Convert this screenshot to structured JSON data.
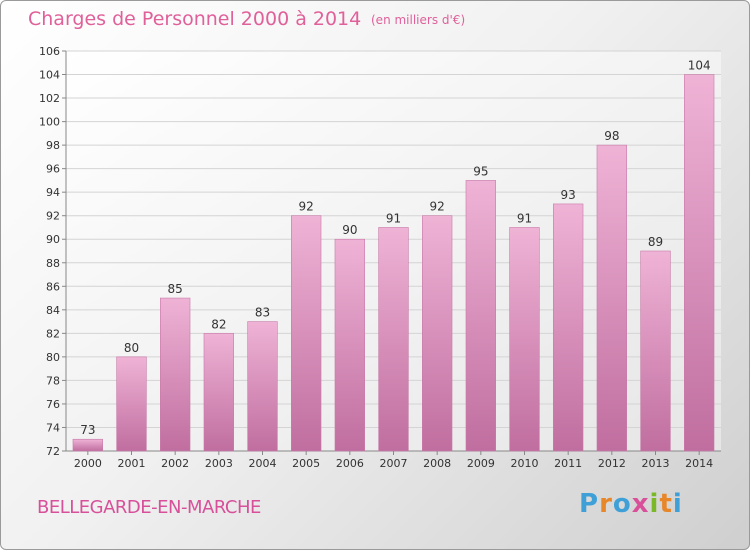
{
  "title": "Charges de Personnel 2000 à 2014",
  "unit": "(en milliers d'€)",
  "commune": "BELLEGARDE-EN-MARCHE",
  "logo": {
    "letters": [
      "P",
      "r",
      "o",
      "x",
      "i",
      "t",
      "i"
    ],
    "colors": [
      "#3fa0d8",
      "#e8862a",
      "#3fa0d8",
      "#d8509a",
      "#7ab828",
      "#e8862a",
      "#3fa0d8"
    ]
  },
  "colors": {
    "bar": "#d98ab8",
    "bar_light": "#efb3d6",
    "bar_dark": "#c06e9f",
    "title": "#e0609a"
  },
  "chart_data": {
    "type": "bar",
    "title": "Charges de Personnel 2000 à 2014",
    "subtitle": "(en milliers d'€)",
    "categories": [
      "2000",
      "2001",
      "2002",
      "2003",
      "2004",
      "2005",
      "2006",
      "2007",
      "2008",
      "2009",
      "2010",
      "2011",
      "2012",
      "2013",
      "2014"
    ],
    "values": [
      73,
      80,
      85,
      82,
      83,
      92,
      90,
      91,
      92,
      95,
      91,
      93,
      98,
      89,
      104
    ],
    "ylim": [
      72,
      106
    ],
    "yticks": [
      72,
      74,
      76,
      78,
      80,
      82,
      84,
      86,
      88,
      90,
      92,
      94,
      96,
      98,
      100,
      102,
      104,
      106
    ],
    "grid": true,
    "legend": "none"
  }
}
